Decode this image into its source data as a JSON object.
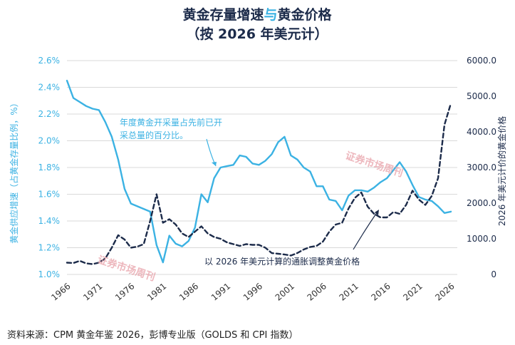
{
  "colors": {
    "supply": "#3bb2e3",
    "price": "#1c2b4a",
    "title_dark": "#1c2b4a",
    "title_accent": "#3bb2e3",
    "grid": "#d9d9d9",
    "watermark": "#e8a0a8"
  },
  "title": {
    "line1_part_a": "黄金存量增速",
    "line1_part_b": "与",
    "line1_part_c": "黄金价格",
    "line2": "（按 2026 年美元计）"
  },
  "annotations": {
    "supply_note_line1": "年度黄金开采量占先前已开",
    "supply_note_line2": "采总量的百分比。",
    "price_note": "以  2026  年美元计算的通胀调整黄金价格"
  },
  "watermarks": [
    "证券市场周刊",
    "证券市场周刊"
  ],
  "source": "资料来源：CPM 黄金年鉴 2026，彭博专业版（GOLDS 和 CPI 指数）",
  "chart_data": {
    "type": "line",
    "title": "黄金存量增速与黄金价格（按 2026 年美元计）",
    "ylabel_left": "黄金供应增速（占黄金存量比例，%）",
    "ylabel_right": "2026 年美元计价的黄金价格",
    "xlim": [
      1966,
      2027
    ],
    "ylim_left": [
      1.0,
      2.6
    ],
    "ylim_right": [
      0,
      6000
    ],
    "x_ticks": [
      1966,
      1971,
      1976,
      1981,
      1986,
      1991,
      1996,
      2001,
      2006,
      2011,
      2016,
      2021,
      2026
    ],
    "y_ticks_left": [
      "1.0%",
      "1.2%",
      "1.4%",
      "1.6%",
      "1.8%",
      "2.0%",
      "2.2%",
      "2.4%",
      "2.6%"
    ],
    "y_ticks_right": [
      "0",
      "1000.0",
      "2000.0",
      "3000.0",
      "4000.0",
      "5000.0",
      "6000.0"
    ],
    "grid": true,
    "series": [
      {
        "axis": "left",
        "style": "solid",
        "x": [
          1966,
          1967,
          1968,
          1969,
          1970,
          1971,
          1972,
          1973,
          1974,
          1975,
          1976,
          1977,
          1978,
          1979,
          1980,
          1981,
          1982,
          1983,
          1984,
          1985,
          1986,
          1987,
          1988,
          1989,
          1990,
          1991,
          1992,
          1993,
          1994,
          1995,
          1996,
          1997,
          1998,
          1999,
          2000,
          2001,
          2002,
          2003,
          2004,
          2005,
          2006,
          2007,
          2008,
          2009,
          2010,
          2011,
          2012,
          2013,
          2014,
          2015,
          2016,
          2017,
          2018,
          2019,
          2020,
          2021,
          2022,
          2023,
          2024,
          2025,
          2026
        ],
        "values": [
          2.45,
          2.32,
          2.29,
          2.26,
          2.24,
          2.23,
          2.14,
          2.03,
          1.86,
          1.64,
          1.53,
          1.51,
          1.49,
          1.47,
          1.22,
          1.09,
          1.29,
          1.23,
          1.21,
          1.25,
          1.35,
          1.6,
          1.54,
          1.72,
          1.8,
          1.81,
          1.82,
          1.89,
          1.88,
          1.83,
          1.82,
          1.85,
          1.9,
          1.99,
          2.03,
          1.89,
          1.86,
          1.8,
          1.77,
          1.66,
          1.66,
          1.56,
          1.55,
          1.48,
          1.59,
          1.63,
          1.63,
          1.62,
          1.65,
          1.69,
          1.72,
          1.78,
          1.84,
          1.77,
          1.67,
          1.58,
          1.56,
          1.55,
          1.51,
          1.46,
          1.47
        ]
      },
      {
        "axis": "right",
        "style": "dashed",
        "x": [
          1966,
          1967,
          1968,
          1969,
          1970,
          1971,
          1972,
          1973,
          1974,
          1975,
          1976,
          1977,
          1978,
          1979,
          1980,
          1981,
          1982,
          1983,
          1984,
          1985,
          1986,
          1987,
          1988,
          1989,
          1990,
          1991,
          1992,
          1993,
          1994,
          1995,
          1996,
          1997,
          1998,
          1999,
          2000,
          2001,
          2002,
          2003,
          2004,
          2005,
          2006,
          2007,
          2008,
          2009,
          2010,
          2011,
          2012,
          2013,
          2014,
          2015,
          2016,
          2017,
          2018,
          2019,
          2020,
          2021,
          2022,
          2023,
          2024,
          2025,
          2026
        ],
        "values": [
          330,
          320,
          380,
          310,
          290,
          330,
          450,
          750,
          1100,
          980,
          750,
          780,
          850,
          1500,
          2250,
          1450,
          1550,
          1400,
          1150,
          1050,
          1200,
          1350,
          1150,
          1050,
          1000,
          900,
          850,
          800,
          850,
          830,
          830,
          750,
          600,
          580,
          560,
          530,
          600,
          700,
          770,
          800,
          920,
          1200,
          1400,
          1450,
          1850,
          2150,
          2300,
          1900,
          1700,
          1600,
          1600,
          1750,
          1700,
          1950,
          2350,
          2100,
          1950,
          2200,
          2700,
          4200,
          4800
        ]
      }
    ]
  }
}
